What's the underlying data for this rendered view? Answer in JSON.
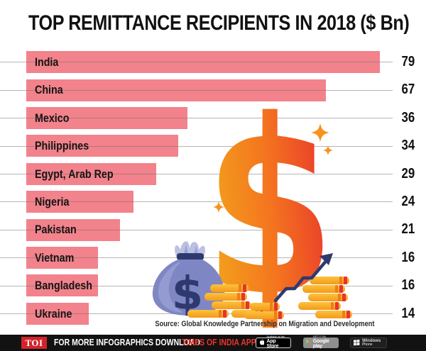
{
  "title": "TOP REMITTANCE RECIPIENTS IN 2018 ($ Bn)",
  "chart_data": {
    "type": "bar",
    "orientation": "horizontal",
    "title": "TOP REMITTANCE RECIPIENTS IN 2018 ($ Bn)",
    "categories": [
      "India",
      "China",
      "Mexico",
      "Philippines",
      "Egypt, Arab Rep",
      "Nigeria",
      "Pakistan",
      "Vietnam",
      "Bangladesh",
      "Ukraine"
    ],
    "values": [
      79,
      67,
      36,
      34,
      29,
      24,
      21,
      16,
      16,
      14
    ],
    "unit": "$ Bn",
    "xlim": [
      0,
      79
    ],
    "grid": true,
    "value_labels": "right",
    "bar_color": "#f2828b"
  },
  "source": "Source: Global Knowledge Partnership on Migration and Development",
  "decorations": {
    "dollar_icon": "$",
    "moneybag_dollar": "$",
    "colors": {
      "dollar_gradient_start": "#f2a51c",
      "dollar_gradient_mid": "#f4741f",
      "dollar_gradient_end": "#e7332c",
      "sparkle": "#f6921e",
      "bag_body": "#7f86c4",
      "bag_highlight": "#9aa0d4",
      "bag_pleats": "#bcc0e2",
      "navy": "#2e3a6e",
      "coin_top": "#fcc23c",
      "coin_bottom": "#f39a1b",
      "coin_stripe": "#ef7d1a",
      "coin_mark": "#e8332c"
    }
  },
  "footer": {
    "toi_logo": "TOI",
    "text_white": "FOR MORE  INFOGRAPHICS DOWNLOAD",
    "text_red": "TIMES OF INDIA APP",
    "badges": {
      "app_store": {
        "line1": "Available on the",
        "line2": "App Store"
      },
      "google_play": {
        "line1": "GET IT ON",
        "line2": "Google play"
      },
      "windows": {
        "line1": "Windows",
        "line2": "Phone"
      }
    }
  }
}
